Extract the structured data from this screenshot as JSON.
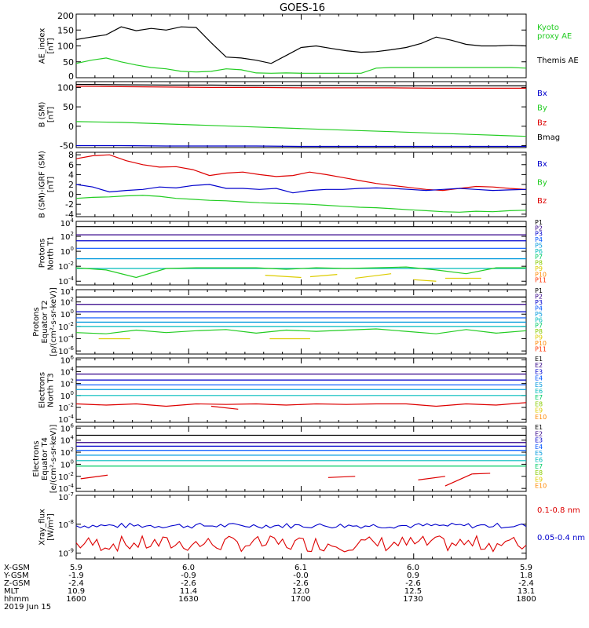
{
  "title": "GOES-16",
  "colors": {
    "black": "#000000",
    "blue": "#0000cc",
    "green": "#22cc22",
    "red": "#dd0000",
    "p": [
      "#000000",
      "#330088",
      "#0000cc",
      "#0055ff",
      "#0099dd",
      "#00bbbb",
      "#00cc66",
      "#88cc00",
      "#ddcc00",
      "#ff8800",
      "#ff3300",
      "#cc0000"
    ]
  },
  "chart_data": [
    {
      "type": "line",
      "ylabel": [
        "AE_index",
        "[nT]"
      ],
      "yticks": [
        "200",
        "150",
        "100",
        "50",
        "0"
      ],
      "ylim": [
        0,
        200
      ],
      "legend": [
        {
          "text": "Kyoto",
          "color": "#22cc22"
        },
        {
          "text": "proxy AE",
          "color": "#22cc22"
        },
        {
          "text": "Themis AE",
          "color": "#000000"
        }
      ],
      "series": [
        {
          "name": "Themis AE",
          "color": "#000000",
          "values": [
            120,
            128,
            135,
            160,
            148,
            155,
            150,
            160,
            158,
            110,
            65,
            62,
            55,
            45,
            70,
            95,
            100,
            92,
            85,
            80,
            82,
            88,
            95,
            108,
            128,
            118,
            105,
            100,
            100,
            102,
            100
          ]
        },
        {
          "name": "Kyoto proxy AE",
          "color": "#22cc22",
          "values": [
            45,
            55,
            62,
            50,
            40,
            32,
            28,
            20,
            18,
            20,
            28,
            25,
            15,
            14,
            15,
            14,
            14,
            14,
            14,
            14,
            30,
            32,
            32,
            32,
            32,
            32,
            32,
            32,
            32,
            32,
            30
          ]
        }
      ]
    },
    {
      "type": "line",
      "ylabel": [
        "B (SM)",
        "[nT]"
      ],
      "yticks": [
        "100",
        "50",
        "0",
        "-50"
      ],
      "ylim": [
        -55,
        115
      ],
      "legend": [
        {
          "text": "Bx",
          "color": "#0000cc"
        },
        {
          "text": "By",
          "color": "#22cc22"
        },
        {
          "text": "Bz",
          "color": "#dd0000"
        },
        {
          "text": "Bmag",
          "color": "#000000"
        }
      ],
      "series": [
        {
          "name": "Bmag",
          "color": "#000000",
          "values": [
            108,
            107,
            106,
            106,
            105,
            105,
            105,
            104,
            104,
            104,
            104
          ]
        },
        {
          "name": "Bz",
          "color": "#dd0000",
          "values": [
            103,
            102,
            101,
            100,
            100,
            99,
            99,
            99,
            98,
            98,
            98
          ]
        },
        {
          "name": "By",
          "color": "#22cc22",
          "values": [
            12,
            10,
            6,
            2,
            -2,
            -6,
            -10,
            -14,
            -18,
            -22,
            -26
          ]
        },
        {
          "name": "Bx",
          "color": "#0000cc",
          "values": [
            -50,
            -50,
            -51,
            -51,
            -51,
            -52,
            -52,
            -52,
            -52,
            -52,
            -52
          ]
        }
      ]
    },
    {
      "type": "line",
      "ylabel": [
        "B (SM)-IGRF (SM)",
        "[nT]"
      ],
      "yticks": [
        "8",
        "6",
        "4",
        "2",
        "0",
        "-2",
        "-4"
      ],
      "ylim": [
        -4.5,
        8.5
      ],
      "legend": [
        {
          "text": "Bx",
          "color": "#0000cc"
        },
        {
          "text": "By",
          "color": "#22cc22"
        },
        {
          "text": "Bz",
          "color": "#dd0000"
        }
      ],
      "series": [
        {
          "name": "Bz",
          "color": "#dd0000",
          "values": [
            7.2,
            7.8,
            8.0,
            6.8,
            6.0,
            5.5,
            5.6,
            5.0,
            3.8,
            4.3,
            4.5,
            4.0,
            3.6,
            3.8,
            4.5,
            4.0,
            3.4,
            2.8,
            2.2,
            1.8,
            1.4,
            1.0,
            0.8,
            1.2,
            1.6,
            1.5,
            1.2,
            1.0
          ]
        },
        {
          "name": "Bx",
          "color": "#0000cc",
          "values": [
            2.0,
            1.5,
            0.5,
            0.8,
            1.0,
            1.5,
            1.3,
            1.8,
            2.0,
            1.2,
            1.2,
            1.0,
            1.2,
            0.3,
            0.8,
            1.0,
            1.0,
            1.2,
            1.3,
            1.2,
            1.0,
            0.8,
            1.0,
            1.2,
            1.0,
            0.8,
            0.9,
            1.0
          ]
        },
        {
          "name": "By",
          "color": "#22cc22",
          "values": [
            -0.8,
            -0.6,
            -0.5,
            -0.3,
            -0.2,
            -0.4,
            -0.8,
            -1.0,
            -1.2,
            -1.3,
            -1.5,
            -1.7,
            -1.8,
            -1.9,
            -2.0,
            -2.2,
            -2.4,
            -2.6,
            -2.7,
            -2.9,
            -3.1,
            -3.3,
            -3.5,
            -3.6,
            -3.4,
            -3.5,
            -3.3,
            -3.2
          ]
        }
      ]
    },
    {
      "type": "line",
      "ylabel": [
        "Protons",
        "North T1"
      ],
      "yticks": [
        {
          "b": "10",
          "e": "4"
        },
        {
          "b": "10",
          "e": "2"
        },
        {
          "b": "10",
          "e": "0"
        },
        {
          "b": "10",
          "e": "-2"
        },
        {
          "b": "10",
          "e": "-4"
        }
      ],
      "ylim": [
        -4.5,
        4
      ],
      "legend": [
        "P1",
        "P2",
        "P3",
        "P4",
        "P5",
        "P6",
        "P7",
        "P8",
        "P9",
        "P10",
        "P11"
      ],
      "levels": [
        3.3,
        2.2,
        1.4,
        0.4,
        -1.0,
        -2.3
      ],
      "noisy": [
        -2.2,
        -2.5,
        -3.5,
        -2.3,
        -2.2,
        -2.2,
        -2.2,
        -2.4,
        -2.2,
        -2.3,
        -2.2,
        -2.1,
        -2.5,
        -3.0,
        -2.2,
        -2.2
      ],
      "fragments": [
        [
          0.42,
          -3.2,
          0.5,
          -3.5
        ],
        [
          0.52,
          -3.4,
          0.58,
          -3.1
        ],
        [
          0.62,
          -3.6,
          0.7,
          -3.0
        ],
        [
          0.75,
          -3.8,
          0.8,
          -4.0
        ],
        [
          0.82,
          -3.6,
          0.9,
          -3.6
        ]
      ]
    },
    {
      "type": "line",
      "ylabel": [
        "Protons",
        "Equator T2",
        "[p/(cm²-s-sr-keV)]"
      ],
      "yticks": [
        {
          "b": "10",
          "e": "4"
        },
        {
          "b": "10",
          "e": "2"
        },
        {
          "b": "10",
          "e": "0"
        },
        {
          "b": "10",
          "e": "-2"
        },
        {
          "b": "10",
          "e": "-4"
        },
        {
          "b": "10",
          "e": "-6"
        }
      ],
      "ylim": [
        -6.5,
        4
      ],
      "legend": [
        "P1",
        "P2",
        "P3",
        "P4",
        "P5",
        "P6",
        "P7",
        "P8",
        "P9",
        "P10",
        "P11"
      ],
      "levels": [
        2.8,
        1.6,
        0.4,
        -0.6,
        -1.3,
        -2.0
      ],
      "noisy": [
        -3.0,
        -3.2,
        -2.6,
        -3.0,
        -2.7,
        -2.5,
        -3.1,
        -2.6,
        -2.8,
        -2.6,
        -2.4,
        -2.8,
        -3.2,
        -2.5,
        -3.1,
        -2.7
      ],
      "fragments": [
        [
          0.05,
          -4.0,
          0.12,
          -4.0
        ],
        [
          0.43,
          -4.0,
          0.52,
          -4.0
        ]
      ]
    },
    {
      "type": "line",
      "ylabel": [
        "Electrons",
        "North T3"
      ],
      "yticks": [
        {
          "b": "10",
          "e": "6"
        },
        {
          "b": "10",
          "e": "4"
        },
        {
          "b": "10",
          "e": "2"
        },
        {
          "b": "10",
          "e": "0"
        },
        {
          "b": "10",
          "e": "-2"
        },
        {
          "b": "10",
          "e": "-4"
        }
      ],
      "ylim": [
        -4.5,
        6.3
      ],
      "legend": [
        "E1",
        "E2",
        "E3",
        "E4",
        "E5",
        "E6",
        "E7",
        "E8",
        "E9",
        "E10"
      ],
      "levels": [
        4.8,
        3.6,
        2.6,
        1.8,
        1.0,
        0.0
      ],
      "noisy": [
        -1.4,
        -1.6,
        -1.4,
        -1.8,
        -1.4,
        -1.5,
        -1.4,
        -1.6,
        -1.4,
        -1.5,
        -1.4,
        -1.4,
        -1.8,
        -1.4,
        -1.6,
        -1.2
      ],
      "fragments": [
        [
          0.3,
          -1.8,
          0.36,
          -2.3
        ]
      ]
    },
    {
      "type": "line",
      "ylabel": [
        "Electrons",
        "Equator T4",
        "[e/(cm²-s-sr-keV)]"
      ],
      "yticks": [
        {
          "b": "10",
          "e": "6"
        },
        {
          "b": "10",
          "e": "4"
        },
        {
          "b": "10",
          "e": "2"
        },
        {
          "b": "10",
          "e": "0"
        },
        {
          "b": "10",
          "e": "-2"
        },
        {
          "b": "10",
          "e": "-4"
        }
      ],
      "ylim": [
        -4.5,
        6.3
      ],
      "legend": [
        "E1",
        "E2",
        "E3",
        "E4",
        "E5",
        "E6",
        "E7",
        "E8",
        "E9",
        "E10"
      ],
      "levels": [
        4.8,
        3.6,
        3.0,
        2.3,
        1.5,
        0.6,
        -0.3
      ],
      "noisy": [],
      "fragments": [
        [
          0.01,
          -2.4,
          0.07,
          -1.8
        ],
        [
          0.56,
          -2.2,
          0.62,
          -2.0
        ],
        [
          0.76,
          -2.6,
          0.82,
          -2.0
        ],
        [
          0.82,
          -3.6,
          0.88,
          -1.6
        ],
        [
          0.88,
          -1.6,
          0.92,
          -1.5
        ]
      ]
    },
    {
      "type": "line",
      "ylabel": [
        "Xray_flux",
        "[W/m²]"
      ],
      "yticks": [
        {
          "b": "10",
          "e": "-7"
        },
        {
          "b": "10",
          "e": "-8"
        },
        {
          "b": "10",
          "e": "-9"
        }
      ],
      "ylim": [
        -9.2,
        -7
      ],
      "legend": [
        {
          "text": "0.1-0.8 nm",
          "color": "#dd0000"
        },
        {
          "text": "0.05-0.4 nm",
          "color": "#0000cc"
        }
      ],
      "blue_level": -8.05,
      "red_level": -8.65
    }
  ],
  "xaxis": {
    "rows": [
      {
        "label": "X-GSM",
        "values": [
          "5.9",
          "6.0",
          "6.1",
          "6.0",
          "5.9"
        ]
      },
      {
        "label": "Y-GSM",
        "values": [
          "-1.9",
          "-0.9",
          "-0.0",
          "0.9",
          "1.8"
        ]
      },
      {
        "label": "Z-GSM",
        "values": [
          "-2.4",
          "-2.6",
          "-2.6",
          "-2.6",
          "-2.4"
        ]
      },
      {
        "label": "MLT",
        "values": [
          "10.9",
          "11.4",
          "12.0",
          "12.5",
          "13.1"
        ]
      },
      {
        "label": "hhmm",
        "values": [
          "1600",
          "1630",
          "1700",
          "1730",
          "1800"
        ]
      }
    ],
    "date": "2019 Jun 15"
  }
}
